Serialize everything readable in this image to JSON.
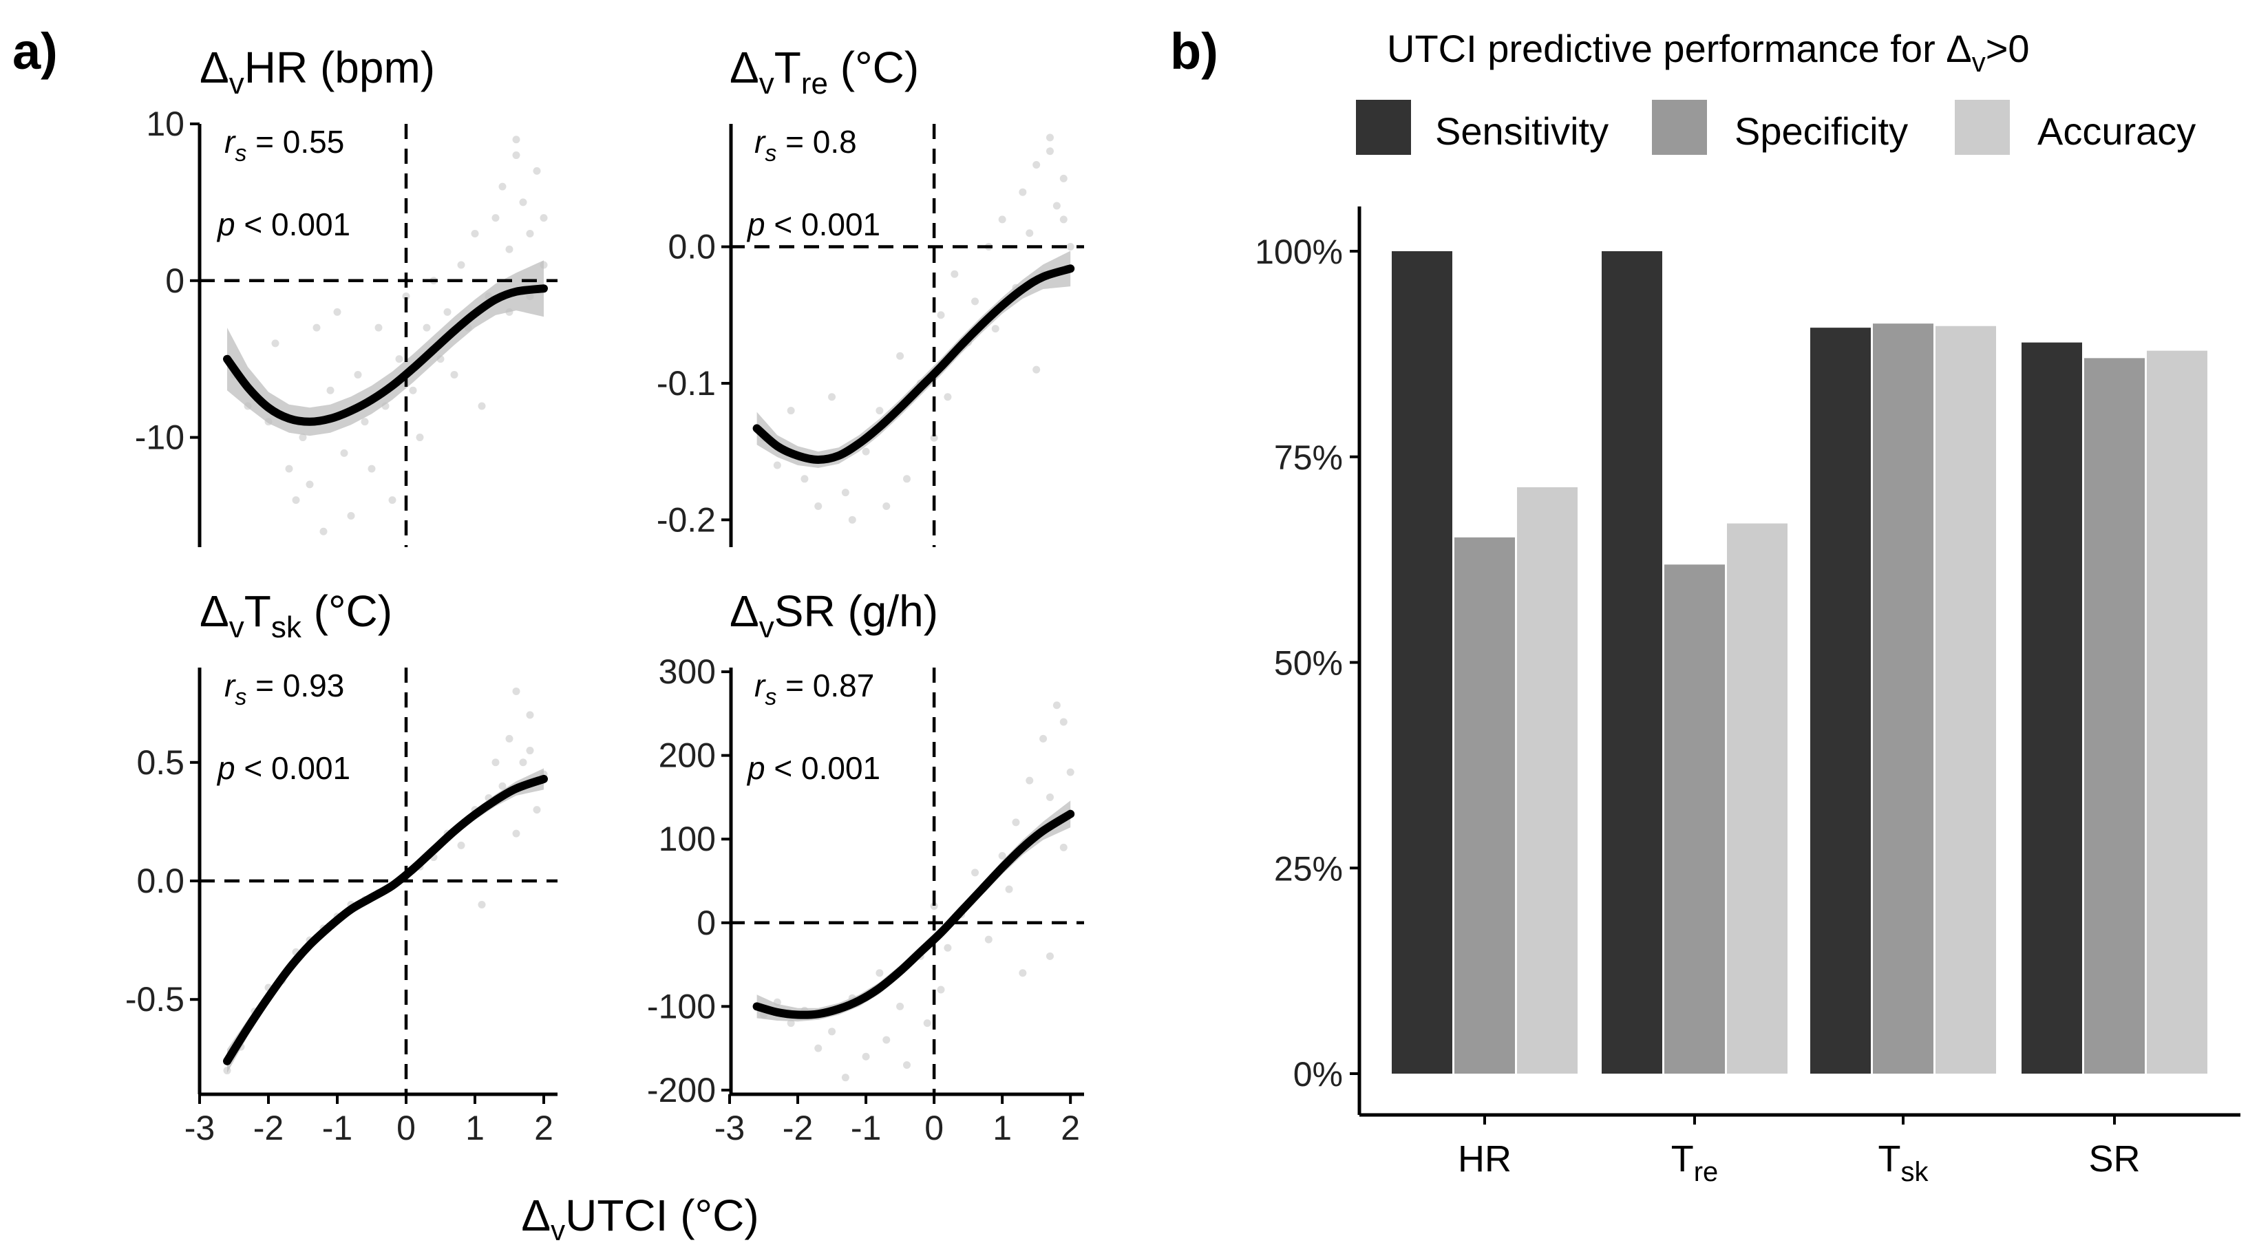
{
  "figure": {
    "label_a": "a)",
    "label_b": "b)",
    "x_axis_label": "UTCI (°C)",
    "delta_prefix": "Δ",
    "delta_sub": "v"
  },
  "chart_data": [
    {
      "type": "scatter",
      "panel": "a",
      "title_main": "HR (bpm)",
      "title_sub": "",
      "title_tail": "",
      "rs_text": "= 0.55",
      "p_text": "< 0.001",
      "xlim": [
        -3,
        2.2
      ],
      "ylim": [
        -17,
        10
      ],
      "xticks": [
        -3,
        -2,
        -1,
        0,
        1,
        2
      ],
      "yticks": [
        -10,
        0,
        10
      ],
      "ytick_labels": [
        "-10",
        "0",
        "10"
      ],
      "fit_x": [
        -2.6,
        -2.3,
        -2.0,
        -1.7,
        -1.4,
        -1.1,
        -0.8,
        -0.5,
        -0.2,
        0.1,
        0.4,
        0.7,
        1.0,
        1.3,
        1.6,
        2.0
      ],
      "fit_y": [
        -5.0,
        -6.8,
        -8.1,
        -8.8,
        -9.0,
        -8.8,
        -8.3,
        -7.6,
        -6.7,
        -5.6,
        -4.4,
        -3.2,
        -2.1,
        -1.2,
        -0.7,
        -0.5
      ],
      "fit_se": [
        2.0,
        1.3,
        1.0,
        0.9,
        0.9,
        0.9,
        0.9,
        0.9,
        0.9,
        0.9,
        0.9,
        0.9,
        0.9,
        1.0,
        1.2,
        1.8
      ],
      "points": [
        [
          -2.5,
          -6
        ],
        [
          -2.3,
          -8
        ],
        [
          -2.0,
          -9
        ],
        [
          -1.9,
          -4
        ],
        [
          -1.7,
          -12
        ],
        [
          -1.6,
          -14
        ],
        [
          -1.5,
          -10
        ],
        [
          -1.4,
          -13
        ],
        [
          -1.3,
          -3
        ],
        [
          -1.2,
          -16
        ],
        [
          -1.1,
          -7
        ],
        [
          -1.0,
          -2
        ],
        [
          -0.9,
          -11
        ],
        [
          -0.8,
          -15
        ],
        [
          -0.7,
          -6
        ],
        [
          -0.6,
          -9
        ],
        [
          -0.5,
          -12
        ],
        [
          -0.4,
          -3
        ],
        [
          -0.3,
          -8
        ],
        [
          -0.2,
          -14
        ],
        [
          -0.1,
          -5
        ],
        [
          0.0,
          -1
        ],
        [
          0.1,
          -7
        ],
        [
          0.2,
          -10
        ],
        [
          0.3,
          -3
        ],
        [
          0.4,
          0
        ],
        [
          0.5,
          -5
        ],
        [
          0.6,
          -2
        ],
        [
          0.7,
          -6
        ],
        [
          0.8,
          1
        ],
        [
          0.9,
          -3
        ],
        [
          1.0,
          3
        ],
        [
          1.1,
          -8
        ],
        [
          1.2,
          -1
        ],
        [
          1.3,
          4
        ],
        [
          1.4,
          6
        ],
        [
          1.5,
          2
        ],
        [
          1.6,
          8
        ],
        [
          1.7,
          5
        ],
        [
          1.8,
          3
        ],
        [
          1.9,
          7
        ],
        [
          2.0,
          1
        ],
        [
          1.5,
          -2
        ],
        [
          1.8,
          -1
        ],
        [
          2.0,
          4
        ],
        [
          1.6,
          9
        ]
      ]
    },
    {
      "type": "scatter",
      "panel": "a",
      "title_main": "T",
      "title_sub": "re",
      "title_tail": " (°C)",
      "rs_text": "= 0.8",
      "p_text": "< 0.001",
      "xlim": [
        -3,
        2.2
      ],
      "ylim": [
        -0.22,
        0.09
      ],
      "xticks": [
        -3,
        -2,
        -1,
        0,
        1,
        2
      ],
      "yticks": [
        -0.2,
        -0.1,
        0.0
      ],
      "ytick_labels": [
        "-0.2",
        "-0.1",
        "0.0"
      ],
      "fit_x": [
        -2.6,
        -2.3,
        -2.0,
        -1.7,
        -1.4,
        -1.1,
        -0.8,
        -0.5,
        -0.2,
        0.1,
        0.4,
        0.7,
        1.0,
        1.3,
        1.6,
        2.0
      ],
      "fit_y": [
        -0.133,
        -0.146,
        -0.153,
        -0.156,
        -0.153,
        -0.144,
        -0.132,
        -0.118,
        -0.103,
        -0.088,
        -0.072,
        -0.057,
        -0.043,
        -0.031,
        -0.022,
        -0.016
      ],
      "fit_se": [
        0.012,
        0.008,
        0.007,
        0.006,
        0.006,
        0.006,
        0.006,
        0.006,
        0.006,
        0.006,
        0.006,
        0.006,
        0.006,
        0.007,
        0.009,
        0.013
      ],
      "points": [
        [
          -2.5,
          -0.14
        ],
        [
          -2.3,
          -0.16
        ],
        [
          -2.1,
          -0.12
        ],
        [
          -1.9,
          -0.17
        ],
        [
          -1.7,
          -0.19
        ],
        [
          -1.5,
          -0.11
        ],
        [
          -1.3,
          -0.18
        ],
        [
          -1.2,
          -0.2
        ],
        [
          -1.0,
          -0.15
        ],
        [
          -0.8,
          -0.12
        ],
        [
          -0.7,
          -0.19
        ],
        [
          -0.5,
          -0.08
        ],
        [
          -0.4,
          -0.17
        ],
        [
          -0.2,
          -0.1
        ],
        [
          0.0,
          -0.14
        ],
        [
          0.1,
          -0.05
        ],
        [
          0.2,
          -0.11
        ],
        [
          0.3,
          -0.02
        ],
        [
          0.5,
          -0.07
        ],
        [
          0.6,
          -0.04
        ],
        [
          0.8,
          0.0
        ],
        [
          0.9,
          -0.06
        ],
        [
          1.0,
          0.02
        ],
        [
          1.2,
          -0.03
        ],
        [
          1.3,
          0.04
        ],
        [
          1.4,
          0.01
        ],
        [
          1.5,
          0.06
        ],
        [
          1.6,
          -0.02
        ],
        [
          1.7,
          0.08
        ],
        [
          1.8,
          0.03
        ],
        [
          1.9,
          0.05
        ],
        [
          2.0,
          0.0
        ],
        [
          1.5,
          -0.09
        ],
        [
          1.7,
          0.07
        ],
        [
          1.9,
          0.02
        ]
      ]
    },
    {
      "type": "scatter",
      "panel": "a",
      "title_main": "T",
      "title_sub": "sk",
      "title_tail": " (°C)",
      "rs_text": "= 0.93",
      "p_text": "< 0.001",
      "xlim": [
        -3,
        2.2
      ],
      "ylim": [
        -0.9,
        0.9
      ],
      "xticks": [
        -3,
        -2,
        -1,
        0,
        1,
        2
      ],
      "yticks": [
        -0.5,
        0.0,
        0.5
      ],
      "ytick_labels": [
        "-0.5",
        "0.0",
        "0.5"
      ],
      "fit_x": [
        -2.6,
        -2.3,
        -2.0,
        -1.7,
        -1.4,
        -1.1,
        -0.8,
        -0.5,
        -0.2,
        0.1,
        0.4,
        0.7,
        1.0,
        1.3,
        1.6,
        2.0
      ],
      "fit_y": [
        -0.76,
        -0.62,
        -0.49,
        -0.37,
        -0.27,
        -0.19,
        -0.12,
        -0.07,
        -0.02,
        0.05,
        0.13,
        0.21,
        0.28,
        0.34,
        0.39,
        0.43
      ],
      "fit_se": [
        0.05,
        0.035,
        0.028,
        0.024,
        0.022,
        0.021,
        0.02,
        0.02,
        0.02,
        0.02,
        0.02,
        0.021,
        0.022,
        0.025,
        0.03,
        0.045
      ],
      "points": [
        [
          -2.6,
          -0.8
        ],
        [
          -2.4,
          -0.7
        ],
        [
          -2.2,
          -0.55
        ],
        [
          -2.0,
          -0.45
        ],
        [
          -1.8,
          -0.42
        ],
        [
          -1.6,
          -0.3
        ],
        [
          -1.4,
          -0.25
        ],
        [
          -1.2,
          -0.2
        ],
        [
          -1.0,
          -0.15
        ],
        [
          -0.8,
          -0.1
        ],
        [
          -0.6,
          -0.08
        ],
        [
          -0.4,
          -0.05
        ],
        [
          -0.2,
          -0.02
        ],
        [
          0.0,
          0.02
        ],
        [
          0.2,
          0.06
        ],
        [
          0.4,
          0.1
        ],
        [
          0.6,
          0.2
        ],
        [
          0.8,
          0.15
        ],
        [
          1.0,
          0.3
        ],
        [
          1.1,
          -0.1
        ],
        [
          1.2,
          0.35
        ],
        [
          1.3,
          0.5
        ],
        [
          1.4,
          0.4
        ],
        [
          1.5,
          0.6
        ],
        [
          1.6,
          0.8
        ],
        [
          1.7,
          0.5
        ],
        [
          1.8,
          0.7
        ],
        [
          1.9,
          0.3
        ],
        [
          2.0,
          0.45
        ],
        [
          1.6,
          0.2
        ],
        [
          1.8,
          0.55
        ]
      ]
    },
    {
      "type": "scatter",
      "panel": "a",
      "title_main": "SR (g/h)",
      "title_sub": "",
      "title_tail": "",
      "rs_text": "= 0.87",
      "p_text": "< 0.001",
      "xlim": [
        -3,
        2.2
      ],
      "ylim": [
        -205,
        305
      ],
      "xticks": [
        -3,
        -2,
        -1,
        0,
        1,
        2
      ],
      "yticks": [
        -200,
        -100,
        0,
        100,
        200,
        300
      ],
      "ytick_labels": [
        "-200",
        "-100",
        "0",
        "100",
        "200",
        "300"
      ],
      "fit_x": [
        -2.6,
        -2.3,
        -2.0,
        -1.7,
        -1.4,
        -1.1,
        -0.8,
        -0.5,
        -0.2,
        0.1,
        0.4,
        0.7,
        1.0,
        1.3,
        1.6,
        2.0
      ],
      "fit_y": [
        -100,
        -107,
        -110,
        -109,
        -103,
        -93,
        -78,
        -58,
        -35,
        -12,
        14,
        40,
        66,
        90,
        110,
        130
      ],
      "fit_se": [
        14,
        10,
        8,
        7,
        7,
        7,
        7,
        7,
        7,
        7,
        7,
        7,
        8,
        9,
        11,
        16
      ],
      "points": [
        [
          -2.5,
          -110
        ],
        [
          -2.3,
          -95
        ],
        [
          -2.1,
          -120
        ],
        [
          -1.9,
          -105
        ],
        [
          -1.7,
          -150
        ],
        [
          -1.5,
          -130
        ],
        [
          -1.3,
          -185
        ],
        [
          -1.2,
          -90
        ],
        [
          -1.0,
          -160
        ],
        [
          -0.8,
          -60
        ],
        [
          -0.7,
          -140
        ],
        [
          -0.5,
          -100
        ],
        [
          -0.4,
          -170
        ],
        [
          -0.2,
          -40
        ],
        [
          -0.1,
          -120
        ],
        [
          0.0,
          20
        ],
        [
          0.1,
          -80
        ],
        [
          0.2,
          -30
        ],
        [
          0.4,
          10
        ],
        [
          0.6,
          60
        ],
        [
          0.8,
          -20
        ],
        [
          1.0,
          80
        ],
        [
          1.1,
          40
        ],
        [
          1.2,
          120
        ],
        [
          1.3,
          -60
        ],
        [
          1.4,
          170
        ],
        [
          1.5,
          100
        ],
        [
          1.6,
          220
        ],
        [
          1.7,
          150
        ],
        [
          1.8,
          260
        ],
        [
          1.9,
          90
        ],
        [
          2.0,
          180
        ],
        [
          1.7,
          -40
        ],
        [
          1.9,
          240
        ]
      ]
    },
    {
      "type": "bar",
      "panel": "b",
      "title_pre": "UTCI predictive performance for ",
      "title_post": ">0",
      "categories": [
        {
          "main": "HR",
          "sub": ""
        },
        {
          "main": "T",
          "sub": "re"
        },
        {
          "main": "T",
          "sub": "sk"
        },
        {
          "main": "SR",
          "sub": ""
        }
      ],
      "series": [
        {
          "name": "Sensitivity",
          "color": "#333333",
          "values": [
            100,
            100,
            90.7,
            88.9
          ]
        },
        {
          "name": "Specificity",
          "color": "#999999",
          "values": [
            65.2,
            61.9,
            91.2,
            87.0
          ]
        },
        {
          "name": "Accuracy",
          "color": "#cccccc",
          "values": [
            71.3,
            66.9,
            90.9,
            87.9
          ]
        }
      ],
      "ylim": [
        0,
        105
      ],
      "yticks": [
        0,
        25,
        50,
        75,
        100
      ],
      "ytick_labels": [
        "0%",
        "25%",
        "50%",
        "75%",
        "100%"
      ]
    }
  ]
}
